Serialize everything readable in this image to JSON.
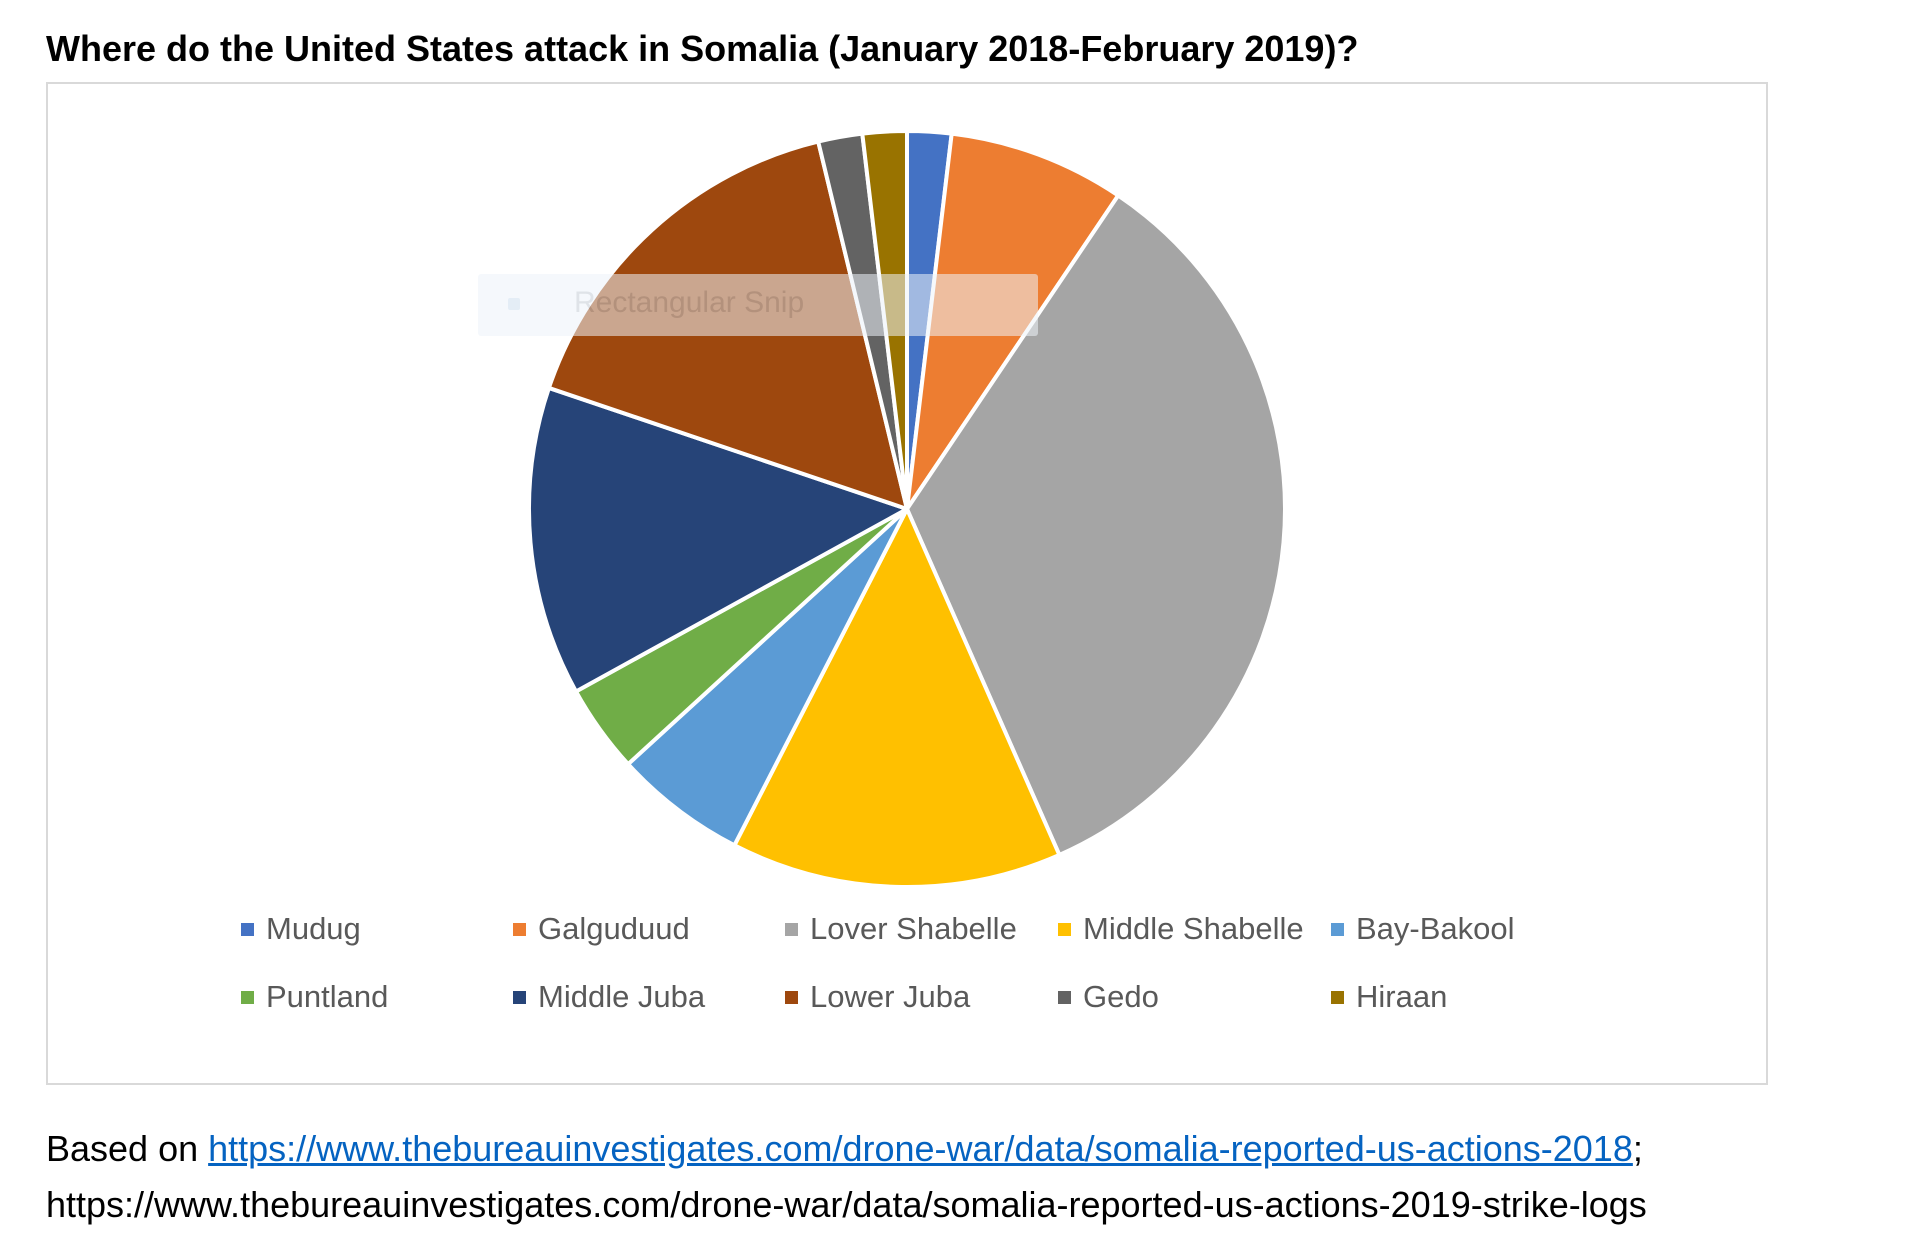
{
  "page": {
    "title": "Where do the United States attack in Somalia (January 2018-February 2019)?",
    "source_prefix": "Based on ",
    "source_link": "https://www.thebureauinvestigates.com/drone-war/data/somalia-reported-us-actions-2018",
    "source_sep": ";",
    "source_line2": "https://www.thebureauinvestigates.com/drone-war/data/somalia-reported-us-actions-2019-strike-logs",
    "overlay_ghost_text": "Rectangular Snip"
  },
  "chart_data": {
    "type": "pie",
    "title": "",
    "categories": [
      "Mudug",
      "Galguduud",
      "Lover Shabelle",
      "Middle Shabelle",
      "Bay-Bakool",
      "Puntland",
      "Middle Juba",
      "Lower Juba",
      "Gedo",
      "Hiraan"
    ],
    "values": [
      2,
      8,
      36,
      15,
      6,
      4,
      14,
      17,
      2,
      2
    ],
    "colors": [
      "#4472c4",
      "#ed7d31",
      "#a5a5a5",
      "#ffc000",
      "#5b9bd5",
      "#70ad47",
      "#264478",
      "#9e480e",
      "#636363",
      "#997300"
    ],
    "legend_position": "bottom",
    "start_angle": "12 o'clock, clockwise"
  }
}
